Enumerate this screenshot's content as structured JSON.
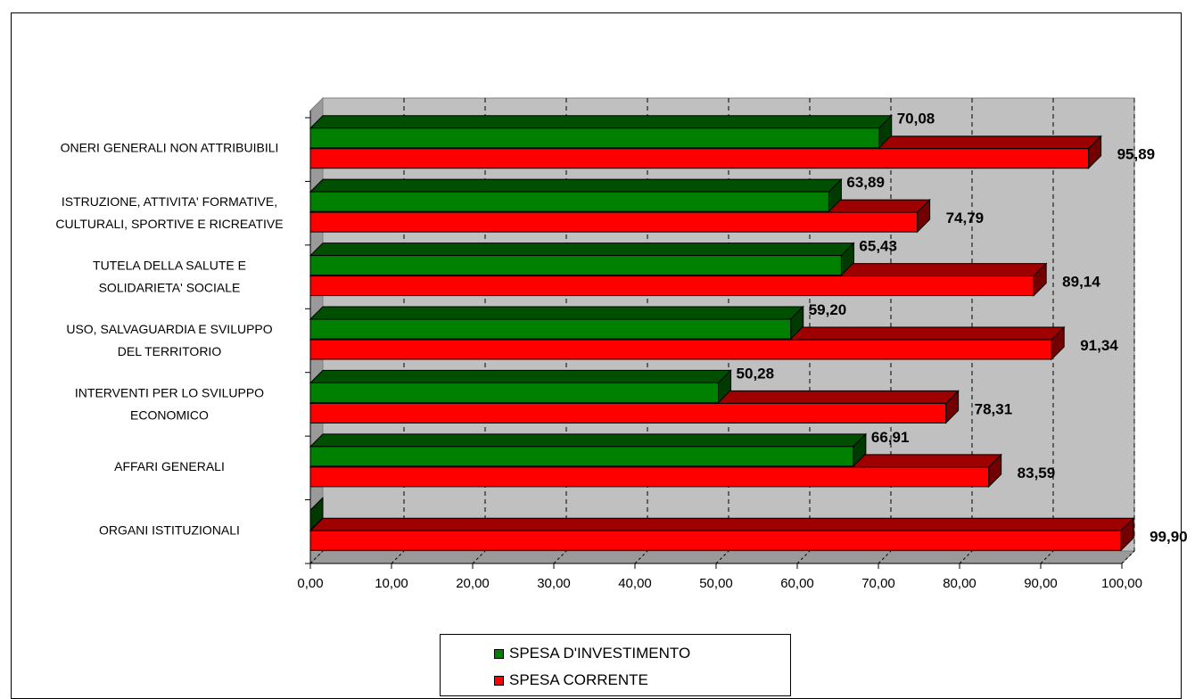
{
  "chart_data": {
    "type": "bar",
    "orientation": "horizontal",
    "three_d": true,
    "categories": [
      [
        "ORGANI ISTITUZIONALI"
      ],
      [
        "AFFARI GENERALI"
      ],
      [
        "INTERVENTI PER LO SVILUPPO",
        "ECONOMICO"
      ],
      [
        "USO, SALVAGUARDIA E SVILUPPO",
        "DEL TERRITORIO"
      ],
      [
        "TUTELA DELLA SALUTE E",
        "SOLIDARIETA' SOCIALE"
      ],
      [
        "ISTRUZIONE, ATTIVITA' FORMATIVE,",
        "CULTURALI, SPORTIVE E RICREATIVE"
      ],
      [
        "ONERI GENERALI NON ATTRIBUIBILI"
      ]
    ],
    "series": [
      {
        "name": "SPESA D'INVESTIMENTO",
        "color": "#008000",
        "values": [
          0,
          66.91,
          50.28,
          59.2,
          65.43,
          63.89,
          70.08
        ],
        "labels": [
          "",
          "66,91",
          "50,28",
          "59,20",
          "65,43",
          "63,89",
          "70,08"
        ]
      },
      {
        "name": "SPESA CORRENTE",
        "color": "#ff0000",
        "values": [
          99.9,
          83.59,
          78.31,
          91.34,
          89.14,
          74.79,
          95.89
        ],
        "labels": [
          "99,90",
          "83,59",
          "78,31",
          "91,34",
          "89,14",
          "74,79",
          "95,89"
        ]
      }
    ],
    "xlim": [
      0,
      100
    ],
    "x_ticks": [
      "0,00",
      "10,00",
      "20,00",
      "30,00",
      "40,00",
      "50,00",
      "60,00",
      "70,00",
      "80,00",
      "90,00",
      "100,00"
    ],
    "grid": "vertical dashed",
    "legend_position": "bottom",
    "wall_color": "#c0c0c0"
  }
}
